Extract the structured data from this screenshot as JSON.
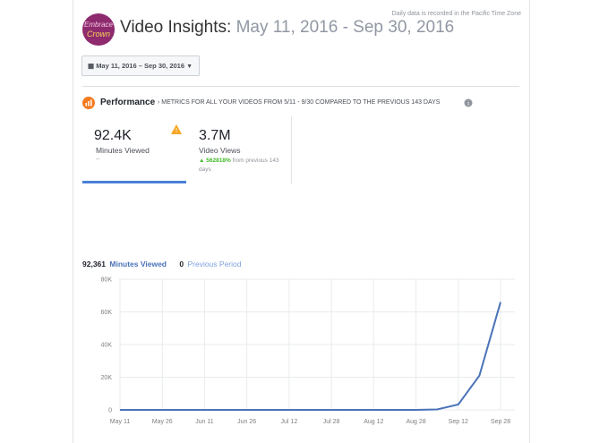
{
  "header": {
    "logo_top": "Embrace",
    "logo_bottom": "Crown",
    "title": "Video Insights:",
    "date_range": "May 11, 2016 - Sep 30, 2016",
    "timezone_note": "Daily data is recorded in the Pacific Time Zone"
  },
  "date_picker": "May 11, 2016 – Sep 30, 2016",
  "performance": {
    "title": "Performance",
    "subtitle": "METRICS FOR ALL YOUR VIDEOS FROM 5/11 - 9/30 COMPARED TO THE PREVIOUS 143 DAYS"
  },
  "metrics": [
    {
      "value": "92.4K",
      "label": "Minutes Viewed",
      "change": "--"
    },
    {
      "value": "3.7M",
      "label": "Video Views",
      "change": "562818%",
      "change_note": "from previous 143 days"
    }
  ],
  "legend": [
    {
      "value": "92,361"
    },
    {
      "value": "0",
      "label": "Previous Period"
    }
  ],
  "chart_data": {
    "type": "line",
    "categories": [
      "May 11",
      null,
      "May 26",
      null,
      "Jun 11",
      null,
      "Jun 26",
      null,
      "Jul 12",
      null,
      "Jul 28",
      null,
      "Aug 12",
      null,
      "Aug 28",
      null,
      "Sep 12",
      null,
      "Sep 28"
    ],
    "series": [
      {
        "name": "Minutes Viewed",
        "color": "#4a73b8",
        "values": [
          0,
          0,
          0,
          0,
          0,
          0,
          0,
          0,
          0,
          0,
          0,
          0,
          0,
          0,
          0,
          300,
          3300,
          21000,
          66000
        ]
      }
    ],
    "ylim": [
      0,
      80000
    ],
    "yticks": [
      0,
      {
        "value": 20000,
        "label": "20K"
      },
      {
        "value": 40000,
        "label": "40K"
      },
      {
        "value": 60000,
        "label": "60K"
      },
      {
        "value": 80000,
        "label": "80K"
      }
    ],
    "grid": true
  }
}
